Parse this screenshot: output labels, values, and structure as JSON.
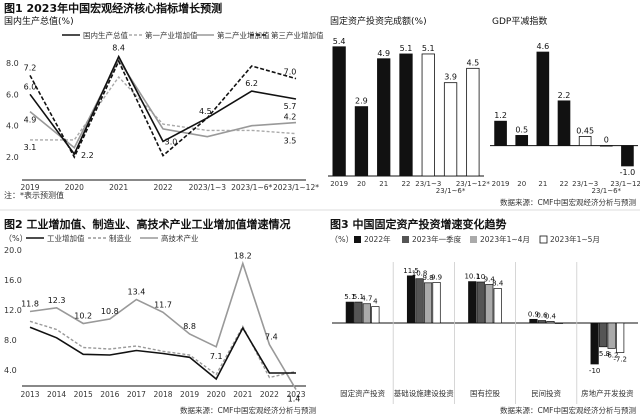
{
  "figure1": {
    "title": "图1 2023年中国宏观经济核心指标增长预测",
    "panel_a": {
      "ylabel": "国内生产总值(%)",
      "note": "注：*表示预测值",
      "legend": [
        "国内生产总值",
        "第一产业增加值",
        "第二产业增加值",
        "第三产业增加值"
      ],
      "categories": [
        "2019",
        "2020",
        "2021",
        "2022",
        "2023/1~3",
        "2023/1~6*",
        "2023/1~12*"
      ],
      "yticks": [
        "2.0",
        "4.0",
        "6.0",
        "8.0"
      ],
      "value_labels": [
        {
          "text": "7.2"
        },
        {
          "text": "6.0"
        },
        {
          "text": "4.9"
        },
        {
          "text": "3.1"
        },
        {
          "text": "2.2"
        },
        {
          "text": "8.4"
        },
        {
          "text": "3.0"
        },
        {
          "text": "4.5"
        },
        {
          "text": "6.2"
        },
        {
          "text": "5.7"
        },
        {
          "text": "7.0"
        },
        {
          "text": "4.2"
        },
        {
          "text": "3.5"
        }
      ]
    },
    "panel_b": {
      "title": "固定资产投资完成额(%)",
      "categories": [
        "2019",
        "20",
        "21",
        "22",
        "23/1~3",
        "23/1~6*",
        "23/1~12*"
      ],
      "value_labels": [
        "5.4",
        "2.9",
        "4.9",
        "5.1",
        "5.1",
        "3.9",
        "4.5"
      ]
    },
    "panel_c": {
      "title": "GDP平减指数",
      "categories": [
        "2019",
        "20",
        "21",
        "22",
        "23/1~3",
        "23/1~6*",
        "23/1~12*"
      ],
      "value_labels": [
        "1.2",
        "0.5",
        "4.6",
        "2.2",
        "0.45",
        "0",
        "-1.0"
      ],
      "source": "数据来源：CMF中国宏观经济分析与预测"
    }
  },
  "figure2": {
    "title": "图2 工业增加值、制造业、高技术产业工业增加值增速情况",
    "unit": "（%）",
    "legend": [
      "工业增加值",
      "制造业",
      "高技术产业"
    ],
    "yticks": [
      "4.0",
      "8.0",
      "12.0",
      "16.0",
      "20.0"
    ],
    "value_labels": [
      "11.8",
      "12.3",
      "10.2",
      "10.8",
      "13.4",
      "11.7",
      "8.8",
      "7.1",
      "18.2",
      "7.4",
      "1.4"
    ],
    "source": "数据来源：CMF中国宏观经济分析与预测"
  },
  "figure3": {
    "title": "图3 中国固定资产投资增速变化趋势",
    "unit": "（%）",
    "legend": [
      "2022年",
      "2023年一季度",
      "2023年1~4月",
      "2023年1~5月"
    ],
    "source": "数据来源：CMF中国宏观经济分析与预测"
  },
  "chart_data": [
    {
      "type": "line",
      "title": "图1 2023年中国宏观经济核心指标增长预测",
      "ylabel": "国内生产总值(%)",
      "categories": [
        "2019",
        "2020",
        "2021",
        "2022",
        "2023/1~3",
        "2023/1~6*",
        "2023/1~12*"
      ],
      "ylim": [
        0.8,
        9.2
      ],
      "series": [
        {
          "name": "国内生产总值",
          "values": [
            6.0,
            2.2,
            8.4,
            3.0,
            4.5,
            6.2,
            5.7
          ]
        },
        {
          "name": "第一产业增加值",
          "values": [
            3.1,
            3.1,
            7.1,
            4.1,
            3.7,
            3.7,
            3.5
          ]
        },
        {
          "name": "第二产业增加值",
          "values": [
            4.9,
            2.6,
            8.2,
            3.8,
            3.3,
            4.0,
            4.2
          ]
        },
        {
          "name": "第三产业增加值",
          "values": [
            7.2,
            2.0,
            8.1,
            2.1,
            4.5,
            7.8,
            7.0
          ]
        }
      ],
      "legend_position": "top",
      "grid": false
    },
    {
      "type": "bar",
      "title": "固定资产投资完成额(%)",
      "categories": [
        "2019",
        "20",
        "21",
        "22",
        "23/1~3",
        "23/1~6*",
        "23/1~12*"
      ],
      "values": [
        5.4,
        2.9,
        4.9,
        5.1,
        5.1,
        3.9,
        4.5
      ],
      "ylim": [
        0,
        5.6
      ],
      "colors": [
        "#111111",
        "#111111",
        "#111111",
        "#111111",
        "#ffffff",
        "#ffffff",
        "#ffffff"
      ]
    },
    {
      "type": "bar",
      "title": "GDP平减指数",
      "categories": [
        "2019",
        "20",
        "21",
        "22",
        "23/1~3",
        "23/1~6*",
        "23/1~12*"
      ],
      "values": [
        1.2,
        0.5,
        4.6,
        2.2,
        0.45,
        0,
        -1.0
      ],
      "ylim": [
        -1.2,
        4.8
      ],
      "colors": [
        "#111111",
        "#111111",
        "#111111",
        "#111111",
        "#ffffff",
        "#ffffff",
        "#111111"
      ]
    },
    {
      "type": "line",
      "title": "图2 工业增加值、制造业、高技术产业工业增加值增速情况",
      "ylabel": "（%）",
      "x": [
        "2013",
        "2014",
        "2015",
        "2016",
        "2017",
        "2018",
        "2019",
        "2020",
        "2021",
        "2022",
        "2023"
      ],
      "ylim": [
        2.4,
        20.0
      ],
      "series": [
        {
          "name": "工业增加值",
          "values": [
            9.7,
            8.3,
            6.1,
            6.0,
            6.6,
            6.2,
            5.7,
            2.8,
            9.6,
            3.6,
            3.6
          ]
        },
        {
          "name": "制造业",
          "values": [
            10.5,
            9.4,
            7.0,
            6.8,
            7.2,
            6.5,
            6.0,
            3.4,
            9.8,
            3.0,
            3.8
          ]
        },
        {
          "name": "高技术产业",
          "values": [
            11.8,
            12.3,
            10.2,
            10.8,
            13.4,
            11.7,
            8.8,
            7.1,
            18.2,
            7.4,
            1.4
          ]
        }
      ],
      "legend_position": "top"
    },
    {
      "type": "bar",
      "title": "图3 中国固定资产投资增速变化趋势",
      "ylabel": "（%）",
      "categories": [
        "固定资产投资",
        "基础设施建设投资",
        "国有控股",
        "民间投资",
        "房地产开发投资"
      ],
      "series": [
        {
          "name": "2022年",
          "values": [
            5.1,
            11.5,
            10.1,
            0.9,
            -10.0
          ]
        },
        {
          "name": "2023年一季度",
          "values": [
            5.1,
            10.8,
            10.0,
            0.6,
            -5.8
          ]
        },
        {
          "name": "2023年1~4月",
          "values": [
            4.7,
            9.8,
            9.4,
            0.4,
            -6.2
          ]
        },
        {
          "name": "2023年1~5月",
          "values": [
            4.0,
            9.9,
            8.4,
            -0.1,
            -7.2
          ]
        }
      ],
      "value_labels": [
        [
          "5.1",
          "5.1",
          "4.7",
          "4"
        ],
        [
          "11.5",
          "10.8",
          "9.8",
          "9.9"
        ],
        [
          "10.1",
          "10",
          "9.4",
          "8.4"
        ],
        [
          "0.9",
          "0.6",
          "0.4",
          ""
        ],
        [
          "-10",
          "-5.8",
          "-6.2",
          "-7.2"
        ]
      ],
      "ylim": [
        -11,
        12
      ],
      "colors": [
        "#111111",
        "#555555",
        "#aaaaaa",
        "#ffffff"
      ],
      "legend_position": "top"
    }
  ]
}
